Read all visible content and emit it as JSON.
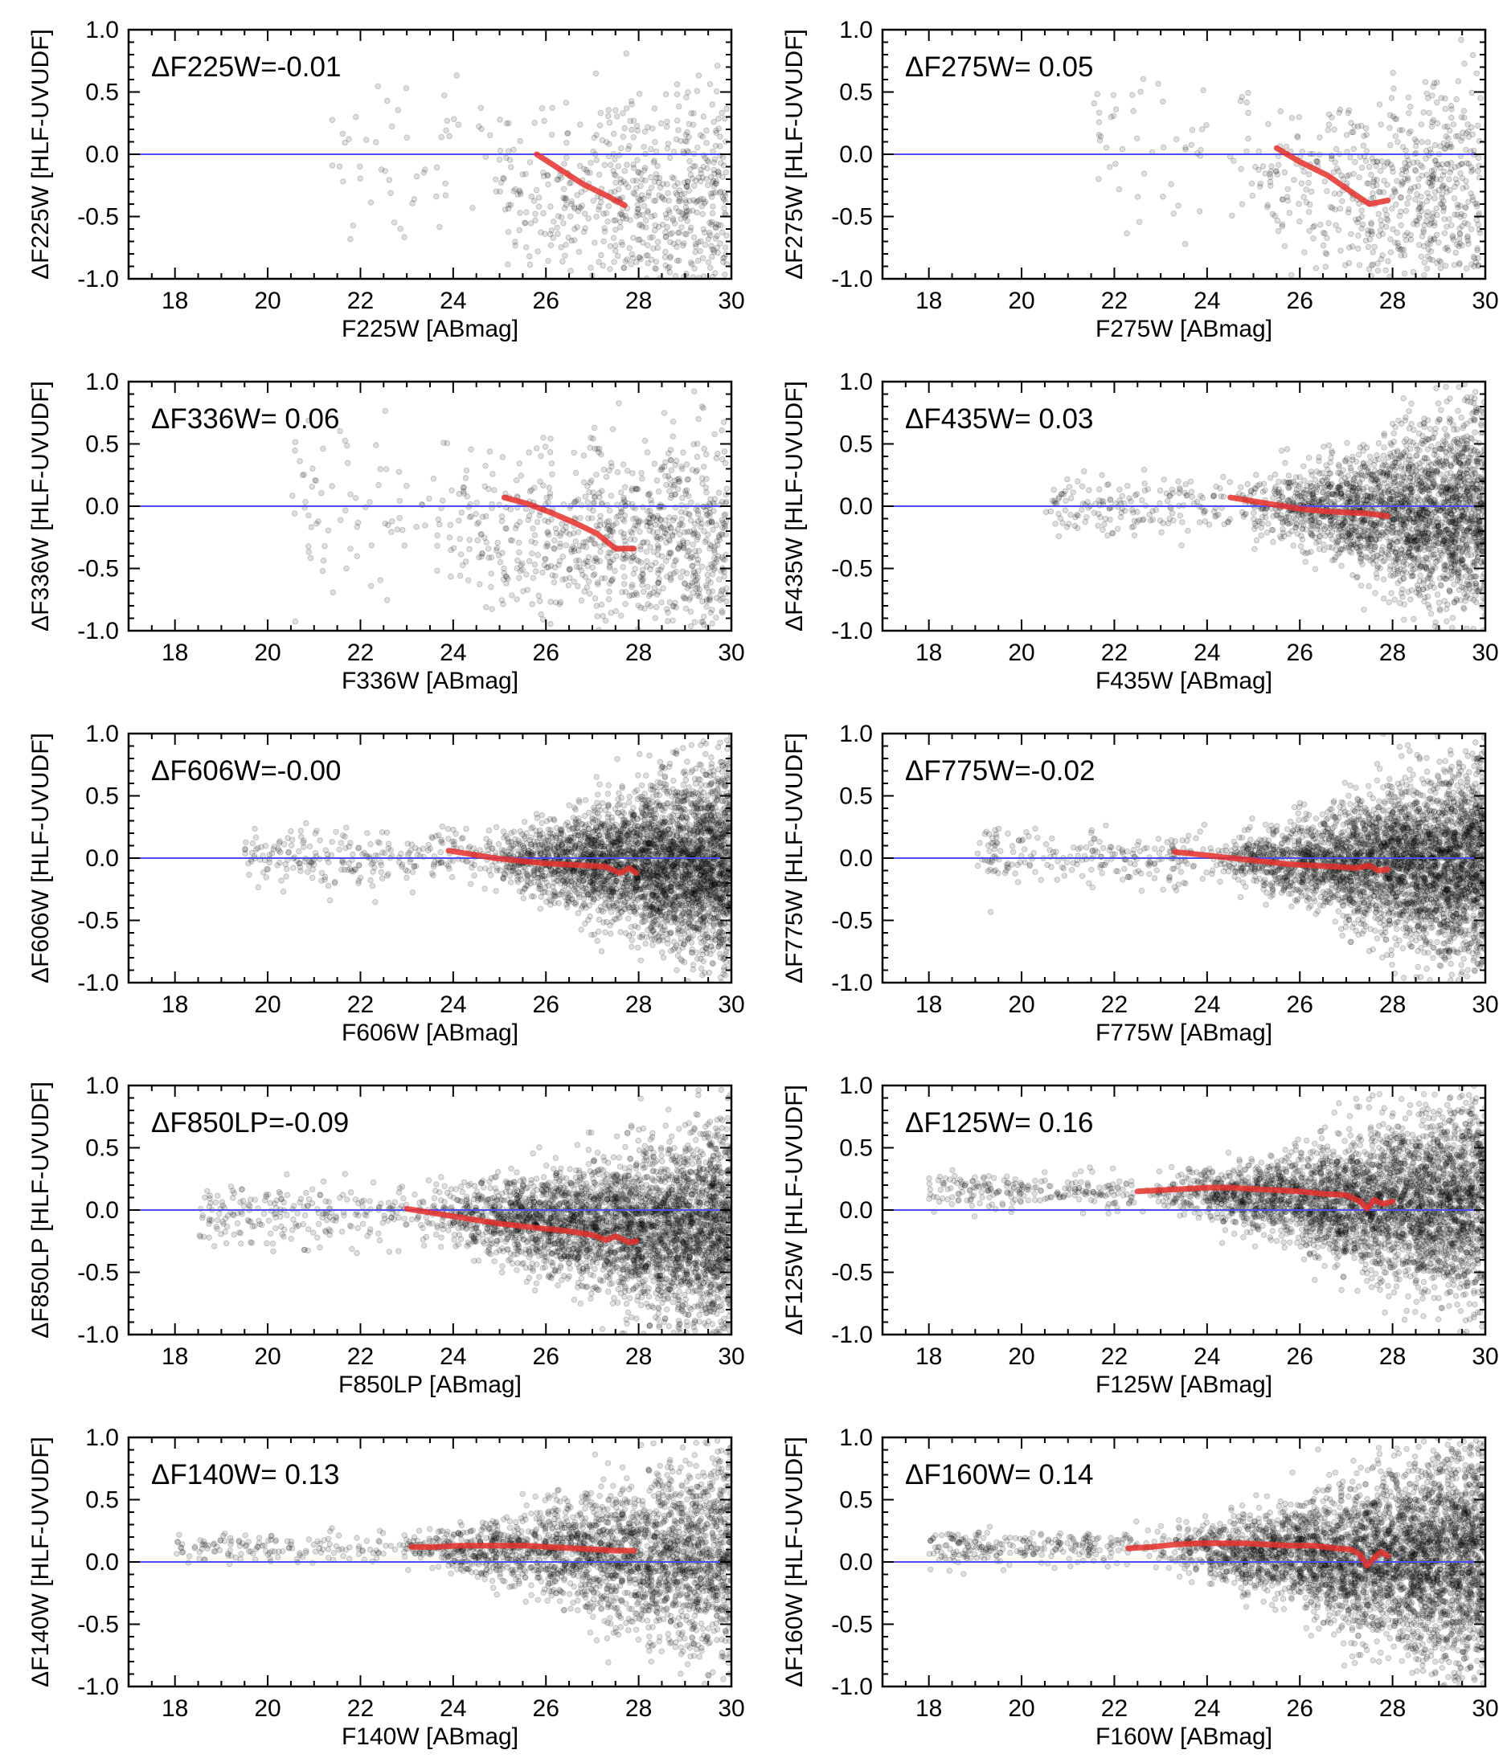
{
  "chart_data": [
    {
      "type": "scatter",
      "filter": "F225W",
      "annotation": "ΔF225W=-0.01",
      "xlabel": "F225W [ABmag]",
      "ylabel": "ΔF225W [HLF-UVUDF]",
      "xlim": [
        17,
        30
      ],
      "ylim": [
        -1,
        1
      ],
      "xticks": [
        "18",
        "20",
        "22",
        "24",
        "26",
        "28",
        "30"
      ],
      "yticks": [
        "1.0",
        "0.5",
        "0.0",
        "-0.5",
        "-1.0"
      ],
      "reference_line": 0,
      "median": {
        "x": [
          25.8,
          26.3,
          26.8,
          27.3,
          27.7
        ],
        "y": [
          0.0,
          -0.12,
          -0.24,
          -0.33,
          -0.41
        ]
      },
      "scatter": {
        "count": 650,
        "mag_min": 21.3,
        "mag_max": 29.9,
        "start": 24.3,
        "knee": 26.5,
        "offset_bright": 0.0,
        "offset_faint": -0.4,
        "sigma_bright": 0.3,
        "sigma_faint": 0.5
      }
    },
    {
      "type": "scatter",
      "filter": "F275W",
      "annotation": "ΔF275W= 0.05",
      "xlabel": "F275W [ABmag]",
      "ylabel": "ΔF275W [HLF-UVUDF]",
      "xlim": [
        17,
        30
      ],
      "ylim": [
        -1,
        1
      ],
      "xticks": [
        "18",
        "20",
        "22",
        "24",
        "26",
        "28",
        "30"
      ],
      "yticks": [
        "1.0",
        "0.5",
        "0.0",
        "-0.5",
        "-1.0"
      ],
      "reference_line": 0,
      "median": {
        "x": [
          25.5,
          26.0,
          26.6,
          27.1,
          27.5,
          27.9
        ],
        "y": [
          0.05,
          -0.06,
          -0.17,
          -0.3,
          -0.4,
          -0.37
        ]
      },
      "scatter": {
        "count": 650,
        "mag_min": 21.5,
        "mag_max": 29.9,
        "start": 24.0,
        "knee": 26.5,
        "offset_bright": 0.0,
        "offset_faint": -0.35,
        "sigma_bright": 0.3,
        "sigma_faint": 0.5
      }
    },
    {
      "type": "scatter",
      "filter": "F336W",
      "annotation": "ΔF336W= 0.06",
      "xlabel": "F336W [ABmag]",
      "ylabel": "ΔF336W [HLF-UVUDF]",
      "xlim": [
        17,
        30
      ],
      "ylim": [
        -1,
        1
      ],
      "xticks": [
        "18",
        "20",
        "22",
        "24",
        "26",
        "28",
        "30"
      ],
      "yticks": [
        "1.0",
        "0.5",
        "0.0",
        "-0.5",
        "-1.0"
      ],
      "reference_line": 0,
      "median": {
        "x": [
          25.1,
          25.6,
          26.1,
          26.6,
          27.1,
          27.5,
          27.9
        ],
        "y": [
          0.07,
          0.02,
          -0.05,
          -0.13,
          -0.22,
          -0.34,
          -0.34
        ]
      },
      "scatter": {
        "count": 950,
        "mag_min": 20.5,
        "mag_max": 29.9,
        "start": 23.0,
        "knee": 26.3,
        "offset_bright": 0.0,
        "offset_faint": -0.3,
        "sigma_bright": 0.3,
        "sigma_faint": 0.45
      }
    },
    {
      "type": "scatter",
      "filter": "F435W",
      "annotation": "ΔF435W= 0.03",
      "xlabel": "F435W [ABmag]",
      "ylabel": "ΔF435W [HLF-UVUDF]",
      "xlim": [
        17,
        30
      ],
      "ylim": [
        -1,
        1
      ],
      "xticks": [
        "18",
        "20",
        "22",
        "24",
        "26",
        "28",
        "30"
      ],
      "yticks": [
        "1.0",
        "0.5",
        "0.0",
        "-0.5",
        "-1.0"
      ],
      "reference_line": 0,
      "median": {
        "x": [
          24.5,
          25.0,
          25.5,
          26.0,
          26.5,
          27.0,
          27.5,
          27.9
        ],
        "y": [
          0.07,
          0.04,
          0.01,
          -0.02,
          -0.04,
          -0.05,
          -0.06,
          -0.08
        ]
      },
      "scatter": {
        "count": 2600,
        "mag_min": 20.5,
        "mag_max": 30.0,
        "start": 24.5,
        "knee": 28.0,
        "offset_bright": 0.02,
        "offset_faint": -0.05,
        "sigma_bright": 0.1,
        "sigma_faint": 0.45
      }
    },
    {
      "type": "scatter",
      "filter": "F606W",
      "annotation": "ΔF606W=-0.00",
      "xlabel": "F606W [ABmag]",
      "ylabel": "ΔF606W [HLF-UVUDF]",
      "xlim": [
        17,
        30
      ],
      "ylim": [
        -1,
        1
      ],
      "xticks": [
        "18",
        "20",
        "22",
        "24",
        "26",
        "28",
        "30"
      ],
      "yticks": [
        "1.0",
        "0.5",
        "0.0",
        "-0.5",
        "-1.0"
      ],
      "reference_line": 0,
      "median": {
        "x": [
          23.9,
          24.4,
          24.9,
          25.4,
          25.9,
          26.4,
          26.9,
          27.3,
          27.6,
          27.8,
          27.95
        ],
        "y": [
          0.06,
          0.03,
          0.0,
          -0.02,
          -0.04,
          -0.05,
          -0.06,
          -0.07,
          -0.12,
          -0.08,
          -0.12
        ]
      },
      "scatter": {
        "count": 3800,
        "mag_min": 19.5,
        "mag_max": 30.0,
        "start": 24.5,
        "knee": 28.5,
        "offset_bright": 0.0,
        "offset_faint": -0.05,
        "sigma_bright": 0.1,
        "sigma_faint": 0.45
      }
    },
    {
      "type": "scatter",
      "filter": "F775W",
      "annotation": "ΔF775W=-0.02",
      "xlabel": "F775W [ABmag]",
      "ylabel": "ΔF775W [HLF-UVUDF]",
      "xlim": [
        17,
        30
      ],
      "ylim": [
        -1,
        1
      ],
      "xticks": [
        "18",
        "20",
        "22",
        "24",
        "26",
        "28",
        "30"
      ],
      "yticks": [
        "1.0",
        "0.5",
        "0.0",
        "-0.5",
        "-1.0"
      ],
      "reference_line": 0,
      "median": {
        "x": [
          23.3,
          23.8,
          24.3,
          24.8,
          25.3,
          25.8,
          26.3,
          26.8,
          27.2,
          27.5,
          27.7,
          27.9
        ],
        "y": [
          0.05,
          0.03,
          0.01,
          -0.01,
          -0.03,
          -0.05,
          -0.06,
          -0.07,
          -0.08,
          -0.06,
          -0.1,
          -0.09
        ]
      },
      "scatter": {
        "count": 3800,
        "mag_min": 19.0,
        "mag_max": 30.0,
        "start": 24.0,
        "knee": 28.5,
        "offset_bright": 0.0,
        "offset_faint": -0.05,
        "sigma_bright": 0.1,
        "sigma_faint": 0.45
      }
    },
    {
      "type": "scatter",
      "filter": "F850LP",
      "annotation": "ΔF850LP=-0.09",
      "xlabel": "F850LP [ABmag]",
      "ylabel": "ΔF850LP [HLF-UVUDF]",
      "xlim": [
        17,
        30
      ],
      "ylim": [
        -1,
        1
      ],
      "xticks": [
        "18",
        "20",
        "22",
        "24",
        "26",
        "28",
        "30"
      ],
      "yticks": [
        "1.0",
        "0.5",
        "0.0",
        "-0.5",
        "-1.0"
      ],
      "reference_line": 0,
      "median": {
        "x": [
          23.0,
          23.5,
          24.0,
          24.5,
          25.0,
          25.5,
          26.0,
          26.5,
          27.0,
          27.3,
          27.5,
          27.8,
          27.95
        ],
        "y": [
          0.01,
          -0.02,
          -0.05,
          -0.08,
          -0.11,
          -0.13,
          -0.15,
          -0.17,
          -0.2,
          -0.24,
          -0.21,
          -0.26,
          -0.25
        ]
      },
      "scatter": {
        "count": 3800,
        "mag_min": 18.5,
        "mag_max": 30.0,
        "start": 23.0,
        "knee": 28.5,
        "offset_bright": -0.02,
        "offset_faint": -0.15,
        "sigma_bright": 0.1,
        "sigma_faint": 0.45
      }
    },
    {
      "type": "scatter",
      "filter": "F125W",
      "annotation": "ΔF125W= 0.16",
      "xlabel": "F125W [ABmag]",
      "ylabel": "ΔF125W [HLF-UVUDF]",
      "xlim": [
        17,
        30
      ],
      "ylim": [
        -1,
        1
      ],
      "xticks": [
        "18",
        "20",
        "22",
        "24",
        "26",
        "28",
        "30"
      ],
      "yticks": [
        "1.0",
        "0.5",
        "0.0",
        "-0.5",
        "-1.0"
      ],
      "reference_line": 0,
      "median": {
        "x": [
          22.5,
          23.0,
          23.5,
          24.0,
          24.5,
          25.0,
          25.5,
          26.0,
          26.5,
          27.0,
          27.3,
          27.45,
          27.6,
          27.8,
          28.0
        ],
        "y": [
          0.15,
          0.16,
          0.17,
          0.18,
          0.18,
          0.17,
          0.16,
          0.15,
          0.13,
          0.12,
          0.07,
          0.01,
          0.08,
          0.05,
          0.07
        ]
      },
      "scatter": {
        "count": 3800,
        "mag_min": 18.0,
        "mag_max": 30.0,
        "start": 22.5,
        "knee": 28.5,
        "offset_bright": 0.15,
        "offset_faint": 0.05,
        "sigma_bright": 0.06,
        "sigma_faint": 0.45
      }
    },
    {
      "type": "scatter",
      "filter": "F140W",
      "annotation": "ΔF140W= 0.13",
      "xlabel": "F140W [ABmag]",
      "ylabel": "ΔF140W [HLF-UVUDF]",
      "xlim": [
        17,
        30
      ],
      "ylim": [
        -1,
        1
      ],
      "xticks": [
        "18",
        "20",
        "22",
        "24",
        "26",
        "28",
        "30"
      ],
      "yticks": [
        "1.0",
        "0.5",
        "0.0",
        "-0.5",
        "-1.0"
      ],
      "reference_line": 0,
      "median": {
        "x": [
          23.1,
          23.6,
          24.1,
          24.6,
          25.1,
          25.6,
          26.1,
          26.6,
          27.1,
          27.5,
          27.9
        ],
        "y": [
          0.12,
          0.12,
          0.13,
          0.13,
          0.13,
          0.13,
          0.12,
          0.11,
          0.1,
          0.09,
          0.09
        ]
      },
      "scatter": {
        "count": 2600,
        "mag_min": 18.0,
        "mag_max": 30.0,
        "start": 22.5,
        "knee": 28.5,
        "offset_bright": 0.12,
        "offset_faint": 0.05,
        "sigma_bright": 0.05,
        "sigma_faint": 0.45
      }
    },
    {
      "type": "scatter",
      "filter": "F160W",
      "annotation": "ΔF160W= 0.14",
      "xlabel": "F160W [ABmag]",
      "ylabel": "ΔF160W [HLF-UVUDF]",
      "xlim": [
        17,
        30
      ],
      "ylim": [
        -1,
        1
      ],
      "xticks": [
        "18",
        "20",
        "22",
        "24",
        "26",
        "28",
        "30"
      ],
      "yticks": [
        "1.0",
        "0.5",
        "0.0",
        "-0.5",
        "-1.0"
      ],
      "reference_line": 0,
      "median": {
        "x": [
          22.3,
          22.8,
          23.3,
          23.8,
          24.3,
          24.8,
          25.3,
          25.8,
          26.3,
          26.8,
          27.1,
          27.3,
          27.45,
          27.6,
          27.75,
          27.9
        ],
        "y": [
          0.11,
          0.12,
          0.14,
          0.15,
          0.15,
          0.15,
          0.14,
          0.13,
          0.13,
          0.11,
          0.1,
          0.06,
          -0.03,
          0.03,
          0.08,
          0.05
        ]
      },
      "scatter": {
        "count": 4200,
        "mag_min": 18.0,
        "mag_max": 30.0,
        "start": 22.5,
        "knee": 28.5,
        "offset_bright": 0.12,
        "offset_faint": 0.0,
        "sigma_bright": 0.06,
        "sigma_faint": 0.5
      }
    }
  ],
  "colors": {
    "points": "#000000",
    "median": "#e8302c",
    "reference": "#4c4cff",
    "axes": "#000000"
  }
}
